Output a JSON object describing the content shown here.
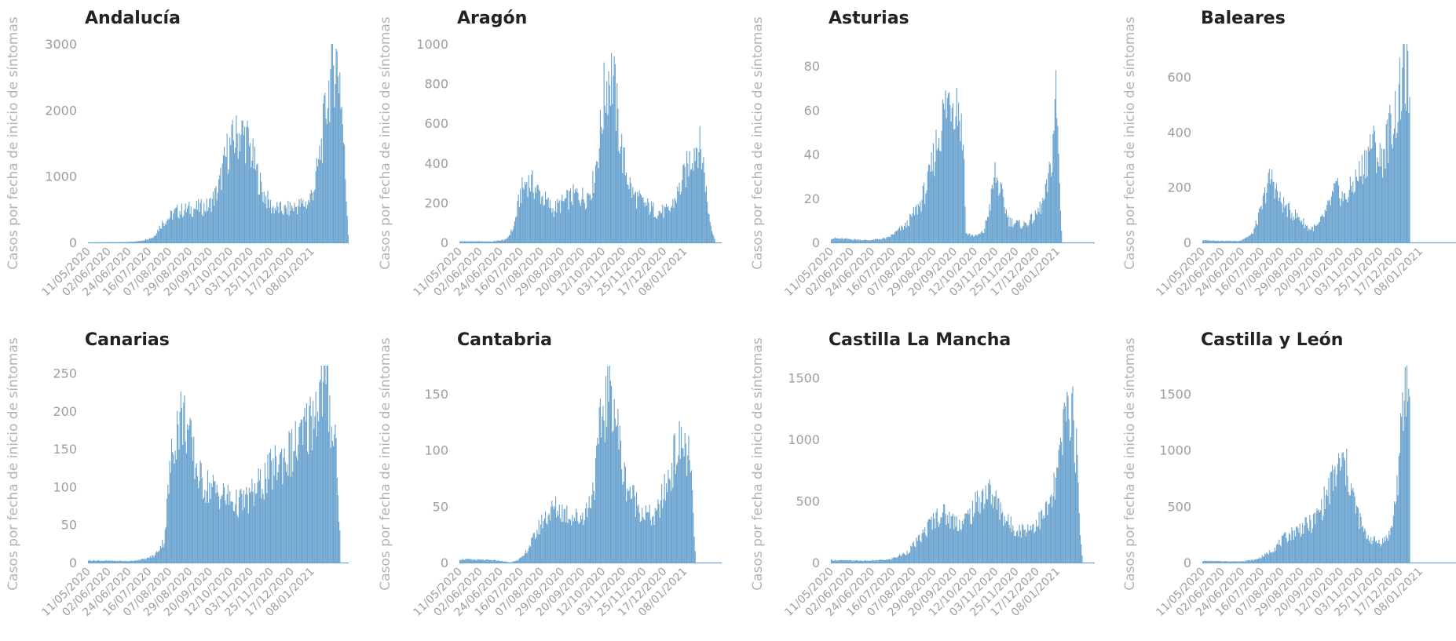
{
  "colors": {
    "bar": "#6aa3cf",
    "title": "#222222",
    "axis_text": "#9e9e9e",
    "ylabel": "#b3b3b3"
  },
  "chart_data": [
    {
      "type": "bar",
      "title": "Andalucía",
      "ylabel": "Casos por fecha de inicio de síntomas",
      "yticks": [
        0,
        1000,
        2000,
        3000
      ],
      "ylim": [
        0,
        3000
      ],
      "xticks": [
        "11/05/2020",
        "02/06/2020",
        "24/06/2020",
        "16/07/2020",
        "07/08/2020",
        "29/08/2020",
        "20/09/2020",
        "12/10/2020",
        "03/11/2020",
        "25/11/2020",
        "17/12/2020",
        "08/01/2021"
      ],
      "series": [
        {
          "profile": [
            [
              0,
              0
            ],
            [
              40,
              5
            ],
            [
              55,
              20
            ],
            [
              70,
              80
            ],
            [
              80,
              300
            ],
            [
              95,
              480
            ],
            [
              110,
              520
            ],
            [
              130,
              560
            ],
            [
              140,
              800
            ],
            [
              150,
              1400
            ],
            [
              158,
              1600
            ],
            [
              165,
              1720
            ],
            [
              172,
              1600
            ],
            [
              178,
              1300
            ],
            [
              188,
              800
            ],
            [
              198,
              550
            ],
            [
              212,
              500
            ],
            [
              225,
              560
            ],
            [
              238,
              620
            ],
            [
              245,
              900
            ],
            [
              252,
              1500
            ],
            [
              258,
              2200
            ],
            [
              264,
              2750
            ],
            [
              268,
              2850
            ],
            [
              272,
              2600
            ],
            [
              276,
              1600
            ],
            [
              281,
              150
            ]
          ]
        }
      ]
    },
    {
      "type": "bar",
      "title": "Aragón",
      "ylabel": "Casos por fecha de inicio de síntomas",
      "yticks": [
        0,
        200,
        400,
        600,
        800,
        1000
      ],
      "ylim": [
        0,
        1000
      ],
      "xticks": [
        "11/05/2020",
        "02/06/2020",
        "24/06/2020",
        "16/07/2020",
        "07/08/2020",
        "29/08/2020",
        "20/09/2020",
        "12/10/2020",
        "03/11/2020",
        "25/11/2020",
        "17/12/2020",
        "08/01/2021"
      ],
      "series": [
        {
          "profile": [
            [
              0,
              6
            ],
            [
              35,
              5
            ],
            [
              50,
              15
            ],
            [
              58,
              80
            ],
            [
              65,
              250
            ],
            [
              72,
              320
            ],
            [
              78,
              300
            ],
            [
              88,
              240
            ],
            [
              100,
              170
            ],
            [
              115,
              220
            ],
            [
              125,
              250
            ],
            [
              135,
              230
            ],
            [
              143,
              300
            ],
            [
              150,
              520
            ],
            [
              155,
              750
            ],
            [
              160,
              880
            ],
            [
              165,
              850
            ],
            [
              170,
              620
            ],
            [
              176,
              420
            ],
            [
              186,
              250
            ],
            [
              198,
              200
            ],
            [
              212,
              160
            ],
            [
              225,
              160
            ],
            [
              235,
              260
            ],
            [
              242,
              350
            ],
            [
              250,
              470
            ],
            [
              256,
              520
            ],
            [
              260,
              450
            ],
            [
              263,
              380
            ],
            [
              266,
              200
            ],
            [
              270,
              90
            ],
            [
              274,
              20
            ]
          ]
        }
      ]
    },
    {
      "type": "bar",
      "title": "Asturias",
      "ylabel": "Casos por fecha de inicio de síntomas",
      "yticks": [
        0,
        20,
        40,
        60,
        80
      ],
      "ylim": [
        0,
        90
      ],
      "xticks": [
        "11/05/2020",
        "02/06/2020",
        "24/06/2020",
        "16/07/2020",
        "07/08/2020",
        "29/08/2020",
        "20/09/2020",
        "12/10/2020",
        "03/11/2020",
        "25/11/2020",
        "17/12/2020",
        "08/01/2021"
      ],
      "series": [
        {
          "profile": [
            [
              0,
              2
            ],
            [
              40,
              1
            ],
            [
              60,
              2
            ],
            [
              80,
              8
            ],
            [
              95,
              18
            ],
            [
              105,
              30
            ],
            [
              112,
              45
            ],
            [
              120,
              60
            ],
            [
              128,
              70
            ],
            [
              136,
              65
            ],
            [
              142,
              40
            ],
            [
              144,
              4
            ],
            [
              155,
              3
            ],
            [
              163,
              5
            ],
            [
              170,
              18
            ],
            [
              175,
              32
            ],
            [
              180,
              25
            ],
            [
              190,
              10
            ],
            [
              205,
              8
            ],
            [
              218,
              12
            ],
            [
              228,
              20
            ],
            [
              235,
              35
            ],
            [
              240,
              70
            ],
            [
              243,
              40
            ],
            [
              246,
              5
            ]
          ]
        }
      ]
    },
    {
      "type": "bar",
      "title": "Baleares",
      "ylabel": "Casos por fecha de inicio de síntomas",
      "yticks": [
        0,
        200,
        400,
        600
      ],
      "ylim": [
        0,
        720
      ],
      "xticks": [
        "11/05/2020",
        "02/06/2020",
        "24/06/2020",
        "16/07/2020",
        "07/08/2020",
        "29/08/2020",
        "20/09/2020",
        "12/10/2020",
        "03/11/2020",
        "25/11/2020",
        "17/12/2020",
        "08/01/2021"
      ],
      "series": [
        {
          "profile": [
            [
              0,
              8
            ],
            [
              40,
              5
            ],
            [
              55,
              30
            ],
            [
              65,
              120
            ],
            [
              72,
              220
            ],
            [
              78,
              240
            ],
            [
              85,
              160
            ],
            [
              95,
              120
            ],
            [
              108,
              90
            ],
            [
              118,
              50
            ],
            [
              128,
              60
            ],
            [
              138,
              120
            ],
            [
              148,
              200
            ],
            [
              158,
              160
            ],
            [
              168,
              220
            ],
            [
              178,
              280
            ],
            [
              188,
              380
            ],
            [
              198,
              300
            ],
            [
              208,
              420
            ],
            [
              216,
              500
            ],
            [
              222,
              600
            ],
            [
              226,
              640
            ],
            [
              230,
              550
            ]
          ]
        }
      ]
    },
    {
      "type": "bar",
      "title": "Canarias",
      "ylabel": "Casos por fecha de inicio de síntomas",
      "yticks": [
        0,
        50,
        100,
        150,
        200,
        250
      ],
      "ylim": [
        0,
        260
      ],
      "xticks": [
        "11/05/2020",
        "02/06/2020",
        "24/06/2020",
        "16/07/2020",
        "07/08/2020",
        "29/08/2020",
        "20/09/2020",
        "12/10/2020",
        "03/11/2020",
        "25/11/2020",
        "17/12/2020",
        "08/01/2021"
      ],
      "series": [
        {
          "profile": [
            [
              0,
              3
            ],
            [
              45,
              2
            ],
            [
              62,
              5
            ],
            [
              72,
              10
            ],
            [
              82,
              30
            ],
            [
              88,
              120
            ],
            [
              94,
              180
            ],
            [
              100,
              200
            ],
            [
              106,
              190
            ],
            [
              112,
              150
            ],
            [
              122,
              110
            ],
            [
              135,
              100
            ],
            [
              148,
              90
            ],
            [
              160,
              80
            ],
            [
              172,
              85
            ],
            [
              182,
              100
            ],
            [
              195,
              120
            ],
            [
              208,
              140
            ],
            [
              220,
              150
            ],
            [
              232,
              170
            ],
            [
              242,
              200
            ],
            [
              250,
              230
            ],
            [
              256,
              250
            ],
            [
              262,
              200
            ],
            [
              268,
              160
            ],
            [
              272,
              40
            ]
          ]
        }
      ]
    },
    {
      "type": "bar",
      "title": "Cantabria",
      "ylabel": "Casos por fecha de inicio de síntomas",
      "yticks": [
        0,
        50,
        100,
        150
      ],
      "ylim": [
        0,
        175
      ],
      "xticks": [
        "11/05/2020",
        "02/06/2020",
        "24/06/2020",
        "16/07/2020",
        "07/08/2020",
        "29/08/2020",
        "20/09/2020",
        "12/10/2020",
        "03/11/2020",
        "25/11/2020",
        "17/12/2020",
        "08/01/2021"
      ],
      "series": [
        {
          "profile": [
            [
              0,
              3
            ],
            [
              40,
              2
            ],
            [
              55,
              0
            ],
            [
              68,
              5
            ],
            [
              78,
              20
            ],
            [
              90,
              40
            ],
            [
              102,
              50
            ],
            [
              115,
              45
            ],
            [
              128,
              40
            ],
            [
              138,
              50
            ],
            [
              146,
              80
            ],
            [
              152,
              130
            ],
            [
              158,
              150
            ],
            [
              164,
              160
            ],
            [
              170,
              120
            ],
            [
              176,
              80
            ],
            [
              186,
              60
            ],
            [
              198,
              45
            ],
            [
              210,
              40
            ],
            [
              222,
              70
            ],
            [
              232,
              100
            ],
            [
              240,
              110
            ],
            [
              246,
              95
            ],
            [
              250,
              60
            ],
            [
              253,
              10
            ]
          ]
        }
      ]
    },
    {
      "type": "bar",
      "title": "Castilla La Mancha",
      "ylabel": "Casos por fecha de inicio de síntomas",
      "yticks": [
        0,
        500,
        1000,
        1500
      ],
      "ylim": [
        0,
        1600
      ],
      "xticks": [
        "11/05/2020",
        "02/06/2020",
        "24/06/2020",
        "16/07/2020",
        "07/08/2020",
        "29/08/2020",
        "20/09/2020",
        "12/10/2020",
        "03/11/2020",
        "25/11/2020",
        "17/12/2020",
        "08/01/2021"
      ],
      "series": [
        {
          "profile": [
            [
              0,
              20
            ],
            [
              40,
              15
            ],
            [
              62,
              25
            ],
            [
              80,
              80
            ],
            [
              95,
              200
            ],
            [
              108,
              350
            ],
            [
              118,
              420
            ],
            [
              128,
              360
            ],
            [
              140,
              330
            ],
            [
              150,
              420
            ],
            [
              160,
              550
            ],
            [
              168,
              600
            ],
            [
              178,
              480
            ],
            [
              190,
              320
            ],
            [
              202,
              270
            ],
            [
              214,
              300
            ],
            [
              226,
              380
            ],
            [
              236,
              520
            ],
            [
              243,
              800
            ],
            [
              249,
              1150
            ],
            [
              254,
              1350
            ],
            [
              258,
              1250
            ],
            [
              262,
              900
            ],
            [
              266,
              300
            ],
            [
              268,
              50
            ]
          ]
        }
      ]
    },
    {
      "type": "bar",
      "title": "Castilla y León",
      "ylabel": "Casos por fecha de inicio de síntomas",
      "yticks": [
        0,
        500,
        1000,
        1500
      ],
      "ylim": [
        0,
        1750
      ],
      "xticks": [
        "11/05/2020",
        "02/06/2020",
        "24/06/2020",
        "16/07/2020",
        "07/08/2020",
        "29/08/2020",
        "20/09/2020",
        "12/10/2020",
        "03/11/2020",
        "25/11/2020",
        "17/12/2020",
        "08/01/2021"
      ],
      "series": [
        {
          "profile": [
            [
              0,
              15
            ],
            [
              40,
              10
            ],
            [
              58,
              25
            ],
            [
              70,
              70
            ],
            [
              82,
              150
            ],
            [
              95,
              250
            ],
            [
              110,
              320
            ],
            [
              122,
              360
            ],
            [
              132,
              500
            ],
            [
              142,
              700
            ],
            [
              150,
              850
            ],
            [
              156,
              900
            ],
            [
              162,
              800
            ],
            [
              170,
              500
            ],
            [
              180,
              260
            ],
            [
              192,
              190
            ],
            [
              202,
              200
            ],
            [
              210,
              300
            ],
            [
              216,
              700
            ],
            [
              220,
              1100
            ],
            [
              224,
              1500
            ],
            [
              227,
              1650
            ],
            [
              230,
              1500
            ]
          ]
        }
      ]
    }
  ]
}
